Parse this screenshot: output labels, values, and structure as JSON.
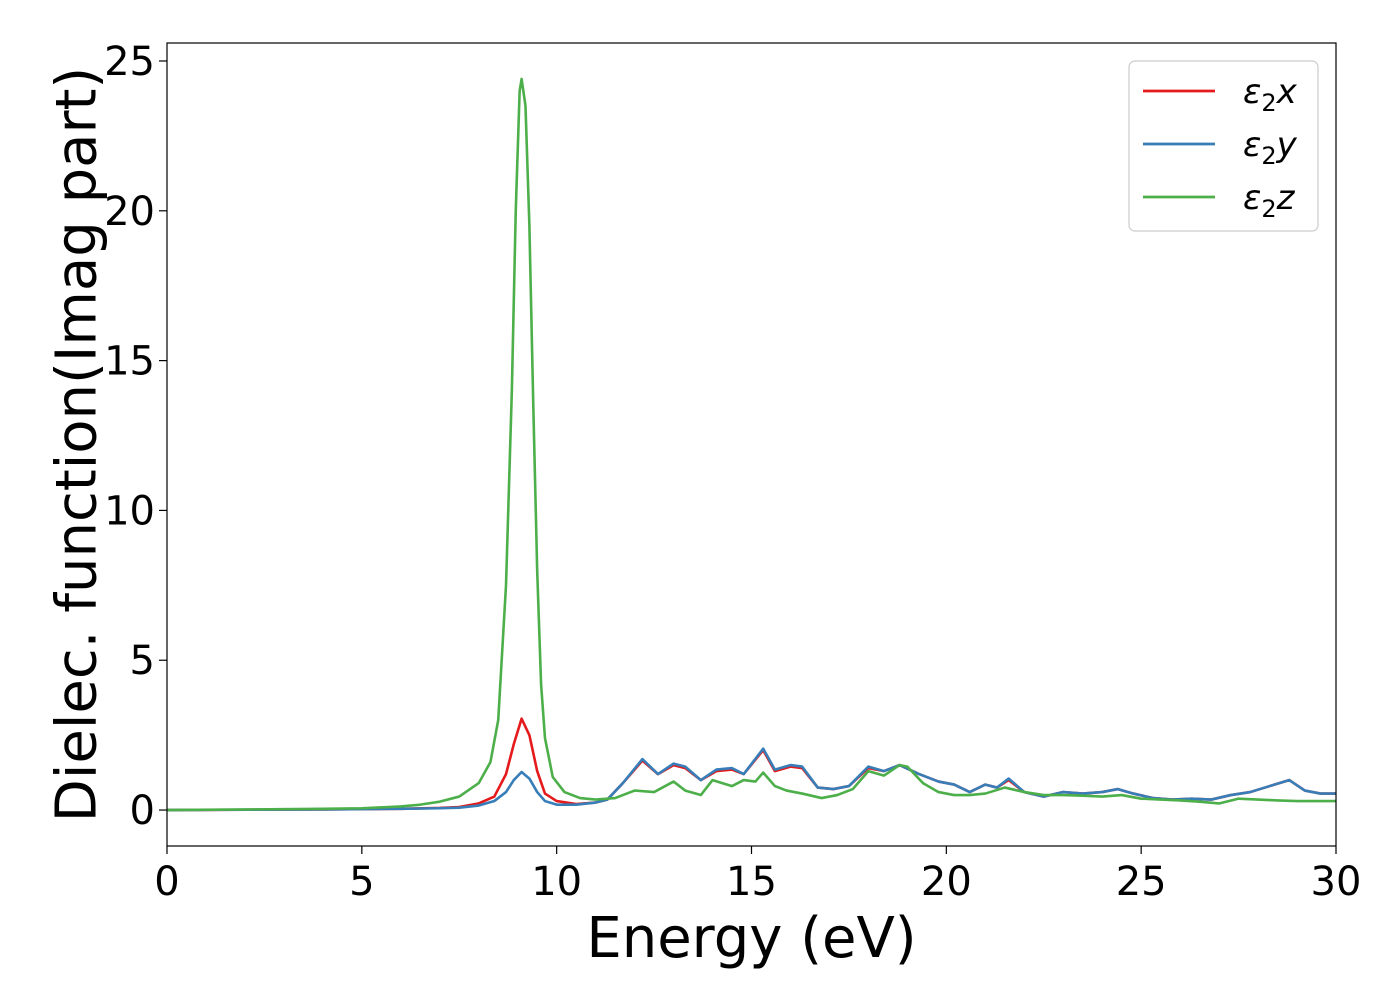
{
  "chart_data": {
    "type": "line",
    "title": "",
    "xlabel": "Energy (eV)",
    "ylabel": "Dielec. function(Imag part)",
    "xlim": [
      0,
      30
    ],
    "ylim": [
      -1.2,
      25.6
    ],
    "xticks": [
      0,
      5,
      10,
      15,
      20,
      25,
      30
    ],
    "yticks": [
      0,
      5,
      10,
      15,
      20,
      25
    ],
    "grid": false,
    "legend_position": "top-right",
    "series": [
      {
        "name": "ε₂x",
        "legend_main": "ε",
        "legend_sub": "2",
        "legend_suffix": "x",
        "color": "#e41a1c",
        "points": [
          [
            0,
            0
          ],
          [
            2,
            0.01
          ],
          [
            4,
            0.02
          ],
          [
            6,
            0.04
          ],
          [
            7,
            0.07
          ],
          [
            7.5,
            0.1
          ],
          [
            8,
            0.22
          ],
          [
            8.4,
            0.45
          ],
          [
            8.7,
            1.2
          ],
          [
            8.9,
            2.2
          ],
          [
            9.1,
            3.05
          ],
          [
            9.3,
            2.5
          ],
          [
            9.5,
            1.3
          ],
          [
            9.7,
            0.55
          ],
          [
            10,
            0.3
          ],
          [
            10.5,
            0.2
          ],
          [
            11,
            0.25
          ],
          [
            11.3,
            0.35
          ],
          [
            11.7,
            0.9
          ],
          [
            12.2,
            1.65
          ],
          [
            12.6,
            1.2
          ],
          [
            13,
            1.5
          ],
          [
            13.3,
            1.4
          ],
          [
            13.7,
            1.0
          ],
          [
            14.1,
            1.3
          ],
          [
            14.5,
            1.35
          ],
          [
            14.8,
            1.2
          ],
          [
            15.3,
            2.0
          ],
          [
            15.6,
            1.3
          ],
          [
            16,
            1.45
          ],
          [
            16.3,
            1.4
          ],
          [
            16.7,
            0.75
          ],
          [
            17.1,
            0.7
          ],
          [
            17.5,
            0.8
          ],
          [
            18,
            1.4
          ],
          [
            18.4,
            1.3
          ],
          [
            18.8,
            1.5
          ],
          [
            19.3,
            1.2
          ],
          [
            19.8,
            0.95
          ],
          [
            20.2,
            0.85
          ],
          [
            20.6,
            0.6
          ],
          [
            21,
            0.85
          ],
          [
            21.3,
            0.75
          ],
          [
            21.6,
            1.0
          ],
          [
            22,
            0.6
          ],
          [
            22.5,
            0.45
          ],
          [
            23,
            0.6
          ],
          [
            23.5,
            0.55
          ],
          [
            24,
            0.6
          ],
          [
            24.4,
            0.7
          ],
          [
            24.8,
            0.55
          ],
          [
            25.3,
            0.4
          ],
          [
            25.8,
            0.35
          ],
          [
            26.3,
            0.38
          ],
          [
            26.8,
            0.35
          ],
          [
            27.3,
            0.5
          ],
          [
            27.8,
            0.6
          ],
          [
            28.3,
            0.8
          ],
          [
            28.8,
            1.0
          ],
          [
            29.2,
            0.65
          ],
          [
            29.6,
            0.55
          ],
          [
            30,
            0.55
          ]
        ]
      },
      {
        "name": "ε₂y",
        "legend_main": "ε",
        "legend_sub": "2",
        "legend_suffix": "y",
        "color": "#377eb8",
        "points": [
          [
            0,
            0
          ],
          [
            2,
            0.01
          ],
          [
            4,
            0.02
          ],
          [
            6,
            0.04
          ],
          [
            7,
            0.06
          ],
          [
            7.5,
            0.08
          ],
          [
            8,
            0.15
          ],
          [
            8.4,
            0.3
          ],
          [
            8.7,
            0.6
          ],
          [
            8.9,
            1.0
          ],
          [
            9.1,
            1.27
          ],
          [
            9.3,
            1.05
          ],
          [
            9.5,
            0.6
          ],
          [
            9.7,
            0.3
          ],
          [
            10,
            0.18
          ],
          [
            10.5,
            0.18
          ],
          [
            11,
            0.25
          ],
          [
            11.3,
            0.35
          ],
          [
            11.7,
            0.9
          ],
          [
            12.2,
            1.7
          ],
          [
            12.6,
            1.2
          ],
          [
            13,
            1.55
          ],
          [
            13.3,
            1.45
          ],
          [
            13.7,
            1.0
          ],
          [
            14.1,
            1.35
          ],
          [
            14.5,
            1.4
          ],
          [
            14.8,
            1.2
          ],
          [
            15.3,
            2.05
          ],
          [
            15.6,
            1.35
          ],
          [
            16,
            1.5
          ],
          [
            16.3,
            1.45
          ],
          [
            16.7,
            0.75
          ],
          [
            17.1,
            0.7
          ],
          [
            17.5,
            0.8
          ],
          [
            18,
            1.45
          ],
          [
            18.4,
            1.3
          ],
          [
            18.8,
            1.5
          ],
          [
            19.3,
            1.2
          ],
          [
            19.8,
            0.95
          ],
          [
            20.2,
            0.85
          ],
          [
            20.6,
            0.6
          ],
          [
            21,
            0.85
          ],
          [
            21.3,
            0.75
          ],
          [
            21.6,
            1.05
          ],
          [
            22,
            0.6
          ],
          [
            22.5,
            0.45
          ],
          [
            23,
            0.6
          ],
          [
            23.5,
            0.55
          ],
          [
            24,
            0.6
          ],
          [
            24.4,
            0.7
          ],
          [
            24.8,
            0.55
          ],
          [
            25.3,
            0.4
          ],
          [
            25.8,
            0.35
          ],
          [
            26.3,
            0.38
          ],
          [
            26.8,
            0.35
          ],
          [
            27.3,
            0.5
          ],
          [
            27.8,
            0.6
          ],
          [
            28.3,
            0.8
          ],
          [
            28.8,
            1.0
          ],
          [
            29.2,
            0.65
          ],
          [
            29.6,
            0.55
          ],
          [
            30,
            0.55
          ]
        ]
      },
      {
        "name": "ε₂z",
        "legend_main": "ε",
        "legend_sub": "2",
        "legend_suffix": "z",
        "color": "#4daf4a",
        "points": [
          [
            0,
            0
          ],
          [
            2,
            0.02
          ],
          [
            4,
            0.04
          ],
          [
            5,
            0.06
          ],
          [
            6,
            0.12
          ],
          [
            6.5,
            0.18
          ],
          [
            7,
            0.28
          ],
          [
            7.5,
            0.45
          ],
          [
            8,
            0.9
          ],
          [
            8.3,
            1.6
          ],
          [
            8.5,
            3.0
          ],
          [
            8.7,
            7.5
          ],
          [
            8.85,
            14.0
          ],
          [
            8.95,
            20.0
          ],
          [
            9.05,
            24.0
          ],
          [
            9.1,
            24.4
          ],
          [
            9.2,
            23.5
          ],
          [
            9.3,
            19.5
          ],
          [
            9.4,
            13.5
          ],
          [
            9.5,
            8.0
          ],
          [
            9.6,
            4.2
          ],
          [
            9.7,
            2.4
          ],
          [
            9.9,
            1.1
          ],
          [
            10.2,
            0.6
          ],
          [
            10.6,
            0.4
          ],
          [
            11,
            0.35
          ],
          [
            11.5,
            0.4
          ],
          [
            12,
            0.65
          ],
          [
            12.5,
            0.6
          ],
          [
            13,
            0.95
          ],
          [
            13.3,
            0.65
          ],
          [
            13.7,
            0.5
          ],
          [
            14,
            1.0
          ],
          [
            14.5,
            0.8
          ],
          [
            14.8,
            1.0
          ],
          [
            15.1,
            0.95
          ],
          [
            15.3,
            1.25
          ],
          [
            15.6,
            0.8
          ],
          [
            15.9,
            0.65
          ],
          [
            16.3,
            0.55
          ],
          [
            16.8,
            0.4
          ],
          [
            17.2,
            0.5
          ],
          [
            17.6,
            0.7
          ],
          [
            18,
            1.3
          ],
          [
            18.4,
            1.15
          ],
          [
            18.8,
            1.5
          ],
          [
            19,
            1.45
          ],
          [
            19.4,
            0.9
          ],
          [
            19.8,
            0.6
          ],
          [
            20.2,
            0.5
          ],
          [
            20.6,
            0.5
          ],
          [
            21,
            0.55
          ],
          [
            21.5,
            0.75
          ],
          [
            22,
            0.6
          ],
          [
            22.5,
            0.5
          ],
          [
            23,
            0.5
          ],
          [
            23.5,
            0.48
          ],
          [
            24,
            0.45
          ],
          [
            24.5,
            0.5
          ],
          [
            25,
            0.38
          ],
          [
            25.5,
            0.35
          ],
          [
            26,
            0.32
          ],
          [
            26.5,
            0.28
          ],
          [
            27,
            0.22
          ],
          [
            27.5,
            0.38
          ],
          [
            28,
            0.35
          ],
          [
            28.5,
            0.32
          ],
          [
            29,
            0.3
          ],
          [
            29.5,
            0.3
          ],
          [
            30,
            0.3
          ]
        ]
      }
    ]
  }
}
